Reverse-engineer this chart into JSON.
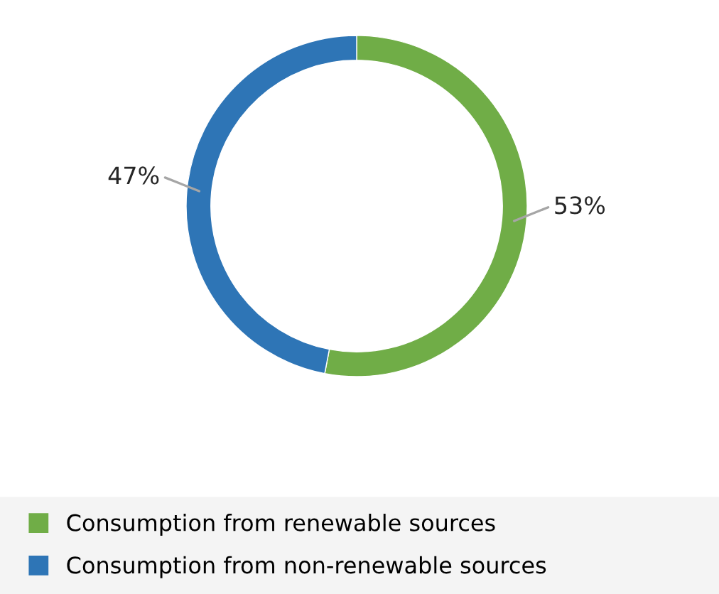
{
  "chart_data": {
    "type": "donut",
    "categories": [
      "Consumption from renewable sources",
      "Consumption from non-renewable sources"
    ],
    "values": [
      53,
      47
    ],
    "colors": [
      "#70ad47",
      "#2e75b6"
    ],
    "value_labels": [
      "53%",
      "47%"
    ],
    "legend": "bottom"
  }
}
